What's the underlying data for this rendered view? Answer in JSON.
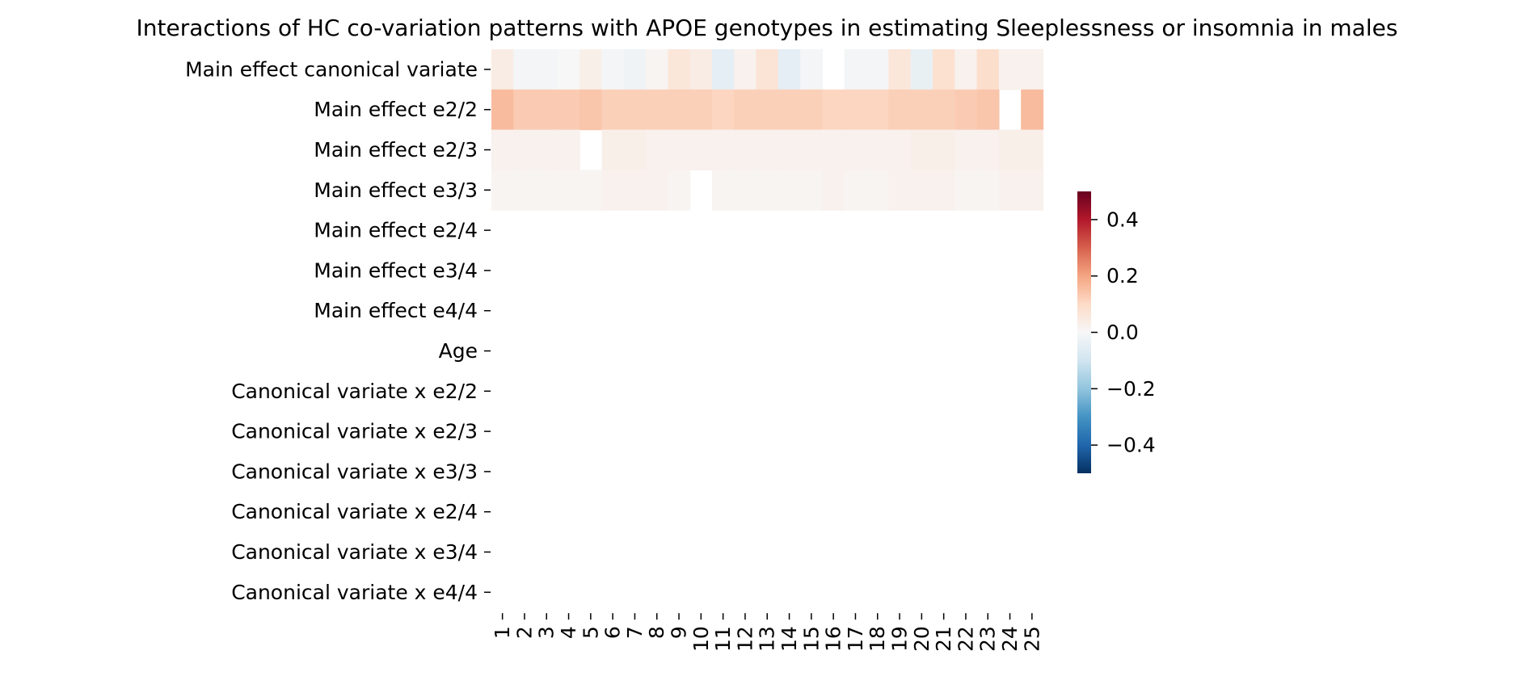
{
  "chart_data": {
    "type": "heatmap",
    "title": "Interactions of HC co-variation patterns with APOE genotypes in estimating Sleeplessness or insomnia in males",
    "xlabel": "",
    "ylabel": "",
    "x_categories": [
      "1",
      "2",
      "3",
      "4",
      "5",
      "6",
      "7",
      "8",
      "9",
      "10",
      "11",
      "12",
      "13",
      "14",
      "15",
      "16",
      "17",
      "18",
      "19",
      "20",
      "21",
      "22",
      "23",
      "24",
      "25"
    ],
    "y_categories": [
      "Main effect canonical variate",
      "Main effect e2/2",
      "Main effect e2/3",
      "Main effect e3/3",
      "Main effect e2/4",
      "Main effect e3/4",
      "Main effect e4/4",
      "Age",
      "Canonical variate x e2/2",
      "Canonical variate x e2/3",
      "Canonical variate x e3/3",
      "Canonical variate x e2/4",
      "Canonical variate x e3/4",
      "Canonical variate x e4/4"
    ],
    "values": [
      [
        0.04,
        -0.01,
        -0.01,
        0.0,
        0.03,
        -0.01,
        -0.02,
        0.01,
        0.06,
        0.04,
        -0.05,
        0.02,
        0.07,
        -0.05,
        -0.01,
        null,
        -0.01,
        -0.01,
        0.06,
        -0.04,
        0.08,
        0.02,
        0.09,
        0.02,
        0.02
      ],
      [
        0.16,
        0.13,
        0.13,
        0.13,
        0.14,
        0.12,
        0.12,
        0.12,
        0.12,
        0.12,
        0.11,
        0.12,
        0.12,
        0.12,
        0.12,
        0.11,
        0.11,
        0.11,
        0.12,
        0.12,
        0.12,
        0.13,
        0.14,
        null,
        0.16
      ],
      [
        0.02,
        0.02,
        0.02,
        0.02,
        null,
        0.03,
        0.03,
        0.02,
        0.02,
        0.02,
        0.02,
        0.02,
        0.02,
        0.02,
        0.02,
        0.02,
        0.02,
        0.02,
        0.02,
        0.03,
        0.03,
        0.02,
        0.02,
        0.03,
        0.03
      ],
      [
        0.01,
        0.01,
        0.01,
        0.01,
        0.01,
        0.02,
        0.02,
        0.02,
        0.01,
        null,
        0.01,
        0.01,
        0.01,
        0.01,
        0.01,
        0.02,
        0.01,
        0.01,
        0.02,
        0.02,
        0.02,
        0.01,
        0.01,
        0.02,
        0.02
      ],
      [
        null,
        null,
        null,
        null,
        null,
        null,
        null,
        null,
        null,
        null,
        null,
        null,
        null,
        null,
        null,
        null,
        null,
        null,
        null,
        null,
        null,
        null,
        null,
        null,
        null
      ],
      [
        null,
        null,
        null,
        null,
        null,
        null,
        null,
        null,
        null,
        null,
        null,
        null,
        null,
        null,
        null,
        null,
        null,
        null,
        null,
        null,
        null,
        null,
        null,
        null,
        null
      ],
      [
        null,
        null,
        null,
        null,
        null,
        null,
        null,
        null,
        null,
        null,
        null,
        null,
        null,
        null,
        null,
        null,
        null,
        null,
        null,
        null,
        null,
        null,
        null,
        null,
        null
      ],
      [
        null,
        null,
        null,
        null,
        null,
        null,
        null,
        null,
        null,
        null,
        null,
        null,
        null,
        null,
        null,
        null,
        null,
        null,
        null,
        null,
        null,
        null,
        null,
        null,
        null
      ],
      [
        null,
        null,
        null,
        null,
        null,
        null,
        null,
        null,
        null,
        null,
        null,
        null,
        null,
        null,
        null,
        null,
        null,
        null,
        null,
        null,
        null,
        null,
        null,
        null,
        null
      ],
      [
        null,
        null,
        null,
        null,
        null,
        null,
        null,
        null,
        null,
        null,
        null,
        null,
        null,
        null,
        null,
        null,
        null,
        null,
        null,
        null,
        null,
        null,
        null,
        null,
        null
      ],
      [
        null,
        null,
        null,
        null,
        null,
        null,
        null,
        null,
        null,
        null,
        null,
        null,
        null,
        null,
        null,
        null,
        null,
        null,
        null,
        null,
        null,
        null,
        null,
        null,
        null
      ],
      [
        null,
        null,
        null,
        null,
        null,
        null,
        null,
        null,
        null,
        null,
        null,
        null,
        null,
        null,
        null,
        null,
        null,
        null,
        null,
        null,
        null,
        null,
        null,
        null,
        null
      ],
      [
        null,
        null,
        null,
        null,
        null,
        null,
        null,
        null,
        null,
        null,
        null,
        null,
        null,
        null,
        null,
        null,
        null,
        null,
        null,
        null,
        null,
        null,
        null,
        null,
        null
      ],
      [
        null,
        null,
        null,
        null,
        null,
        null,
        null,
        null,
        null,
        null,
        null,
        null,
        null,
        null,
        null,
        null,
        null,
        null,
        null,
        null,
        null,
        null,
        null,
        null,
        null
      ]
    ],
    "colormap": "RdBu_r",
    "vmin": -0.5,
    "vmax": 0.5,
    "colorbar_ticks": [
      0.4,
      0.2,
      0.0,
      -0.2,
      -0.4
    ],
    "colorbar_tick_labels": [
      "0.4",
      "0.2",
      "0.0",
      "−0.2",
      "−0.4"
    ]
  }
}
